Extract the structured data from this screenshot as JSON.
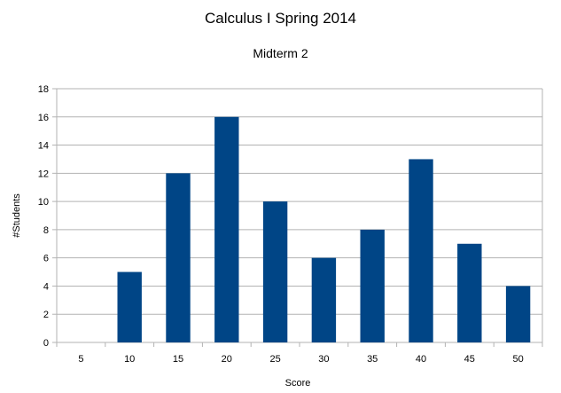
{
  "chart_data": {
    "type": "bar",
    "title": "Calculus I Spring 2014",
    "subtitle": "Midterm 2",
    "xlabel": "Score",
    "ylabel": "#Students",
    "categories": [
      "5",
      "10",
      "15",
      "20",
      "25",
      "30",
      "35",
      "40",
      "45",
      "50"
    ],
    "values": [
      0,
      5,
      12,
      16,
      10,
      6,
      8,
      13,
      7,
      4
    ],
    "ylim": [
      0,
      18
    ],
    "yticks": [
      "0",
      "2",
      "4",
      "6",
      "8",
      "10",
      "12",
      "14",
      "16",
      "18"
    ],
    "grid": true,
    "legend": "none",
    "colors": {
      "bar": "#004586",
      "grid": "#b3b3b3",
      "axis": "#b3b3b3"
    }
  }
}
